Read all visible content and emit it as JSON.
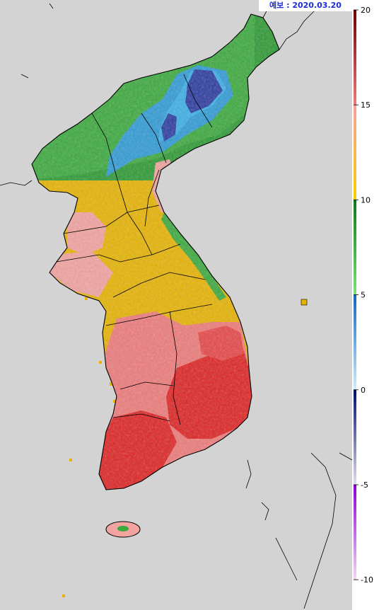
{
  "forecast_label": "예보 : 2020.03.20",
  "legend": {
    "ticks": [
      "20",
      "15",
      "10",
      "5",
      "0",
      "-5",
      "-10"
    ],
    "bands": [
      {
        "from": 15,
        "to": 20,
        "color_top": "#6b0000",
        "color_bottom": "#f07a7a"
      },
      {
        "from": 10,
        "to": 15,
        "color_top": "#f5a0a0",
        "color_bottom": "#f5d000"
      },
      {
        "from": 5,
        "to": 10,
        "color_top": "#0a7a1a",
        "color_bottom": "#7ee07e"
      },
      {
        "from": 0,
        "to": 5,
        "color_top": "#1565c0",
        "color_bottom": "#cfeefd"
      },
      {
        "from": -5,
        "to": 0,
        "color_top": "#000b6b",
        "color_bottom": "#e0e0ec"
      },
      {
        "from": -10,
        "to": -5,
        "color_top": "#8a00d4",
        "color_bottom": "#f5d8f5"
      }
    ],
    "range": [
      -11,
      20
    ]
  },
  "colors": {
    "sea": "#d3d3d3",
    "coast": "#000000",
    "date_text": "#1f2bd6"
  }
}
